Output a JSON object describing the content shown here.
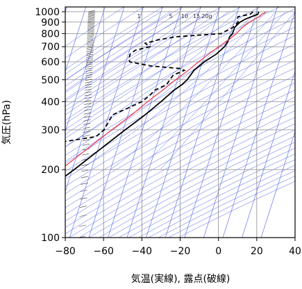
{
  "chart_data": {
    "type": "line",
    "xlabel": "気温(実線), 露点(破線)",
    "ylabel": "気圧(hPa)",
    "xlim": [
      -80,
      40
    ],
    "ylim": [
      1050,
      100
    ],
    "y_scale": "log",
    "x_ticks": [
      -80,
      -60,
      -40,
      -20,
      0,
      20,
      40
    ],
    "x_tick_labels": [
      "−80",
      "−60",
      "−40",
      "−20",
      "0",
      "20",
      "40"
    ],
    "y_ticks": [
      100,
      200,
      300,
      400,
      500,
      600,
      700,
      800,
      900,
      1000
    ],
    "y_tick_labels": [
      "100",
      "200",
      "300",
      "400",
      "500",
      "600",
      "700",
      "800",
      "900",
      "1000"
    ],
    "mixing_ratio_labels": [
      "1",
      "5",
      "10",
      "15",
      "20g"
    ],
    "colors": {
      "temperature": "#000000",
      "dewpoint": "#000000",
      "parcel": "#e8344a",
      "isotherm": "#4a5ee8",
      "dry_adiabat": "#4a5ee8",
      "moist_adiabat": "#4a5ee8",
      "grid": "#888888"
    },
    "series": [
      {
        "key": "temperature",
        "style": "solid",
        "points": [
          {
            "p": 1000,
            "t": 21
          },
          {
            "p": 975,
            "t": 21
          },
          {
            "p": 950,
            "t": 18
          },
          {
            "p": 925,
            "t": 15
          },
          {
            "p": 900,
            "t": 13
          },
          {
            "p": 875,
            "t": 12
          },
          {
            "p": 850,
            "t": 11
          },
          {
            "p": 800,
            "t": 11
          },
          {
            "p": 775,
            "t": 10
          },
          {
            "p": 750,
            "t": 10
          },
          {
            "p": 700,
            "t": 9
          },
          {
            "p": 650,
            "t": 6
          },
          {
            "p": 600,
            "t": 1
          },
          {
            "p": 550,
            "t": -3
          },
          {
            "p": 500,
            "t": -5
          },
          {
            "p": 475,
            "t": -7
          },
          {
            "p": 450,
            "t": -10
          },
          {
            "p": 400,
            "t": -15
          },
          {
            "p": 350,
            "t": -21
          },
          {
            "p": 300,
            "t": -29
          },
          {
            "p": 250,
            "t": -38
          },
          {
            "p": 200,
            "t": -49
          },
          {
            "p": 175,
            "t": -56
          },
          {
            "p": 150,
            "t": -62
          },
          {
            "p": 130,
            "t": -66
          },
          {
            "p": 115,
            "t": -68
          },
          {
            "p": 100,
            "t": -69
          }
        ]
      },
      {
        "key": "dewpoint",
        "style": "dashed",
        "points": [
          {
            "p": 1000,
            "t": 18
          },
          {
            "p": 975,
            "t": 17
          },
          {
            "p": 950,
            "t": 11
          },
          {
            "p": 925,
            "t": 11
          },
          {
            "p": 900,
            "t": 12
          },
          {
            "p": 850,
            "t": 10
          },
          {
            "p": 800,
            "t": 5
          },
          {
            "p": 775,
            "t": -18
          },
          {
            "p": 750,
            "t": -27
          },
          {
            "p": 725,
            "t": -33
          },
          {
            "p": 700,
            "t": -30
          },
          {
            "p": 675,
            "t": -37
          },
          {
            "p": 650,
            "t": -39
          },
          {
            "p": 625,
            "t": -39
          },
          {
            "p": 600,
            "t": -38
          },
          {
            "p": 575,
            "t": -26
          },
          {
            "p": 560,
            "t": -10
          },
          {
            "p": 550,
            "t": -8
          },
          {
            "p": 525,
            "t": -13
          },
          {
            "p": 500,
            "t": -14
          },
          {
            "p": 475,
            "t": -15
          },
          {
            "p": 450,
            "t": -20
          },
          {
            "p": 425,
            "t": -22
          },
          {
            "p": 400,
            "t": -25
          },
          {
            "p": 375,
            "t": -31
          },
          {
            "p": 350,
            "t": -38
          },
          {
            "p": 325,
            "t": -39
          },
          {
            "p": 300,
            "t": -40
          },
          {
            "p": 280,
            "t": -43
          },
          {
            "p": 260,
            "t": -66
          },
          {
            "p": 255,
            "t": -78
          }
        ]
      },
      {
        "key": "parcel",
        "style": "solid",
        "points": [
          {
            "p": 1000,
            "t": 25
          },
          {
            "p": 975,
            "t": 23
          },
          {
            "p": 950,
            "t": 22
          },
          {
            "p": 925,
            "t": 20
          },
          {
            "p": 900,
            "t": 18
          },
          {
            "p": 850,
            "t": 15
          },
          {
            "p": 800,
            "t": 13
          },
          {
            "p": 750,
            "t": 10
          },
          {
            "p": 700,
            "t": 6
          },
          {
            "p": 650,
            "t": 2
          },
          {
            "p": 600,
            "t": -2
          },
          {
            "p": 550,
            "t": -6
          },
          {
            "p": 500,
            "t": -11
          },
          {
            "p": 450,
            "t": -16
          },
          {
            "p": 400,
            "t": -22
          },
          {
            "p": 350,
            "t": -28
          },
          {
            "p": 300,
            "t": -36
          },
          {
            "p": 250,
            "t": -45
          },
          {
            "p": 200,
            "t": -56
          },
          {
            "p": 175,
            "t": -63
          },
          {
            "p": 150,
            "t": -72
          },
          {
            "p": 140,
            "t": -80
          }
        ]
      }
    ]
  }
}
